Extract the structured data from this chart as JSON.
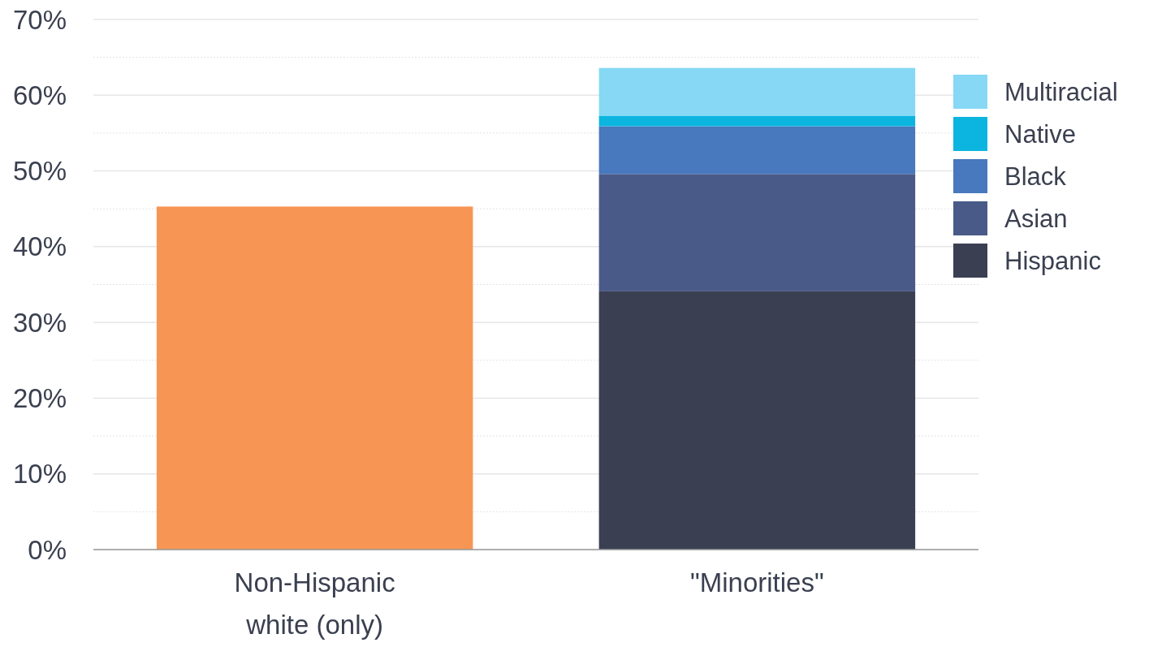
{
  "chart_data": {
    "type": "bar",
    "stacked": true,
    "categories": [
      "Non-Hispanic white (only)",
      "\"Minorities\""
    ],
    "series": [
      {
        "color": "#f79654",
        "values": [
          45.3,
          null
        ]
      },
      {
        "name": "Hispanic",
        "color": "#3a4052",
        "values": [
          null,
          34.1
        ]
      },
      {
        "name": "Asian",
        "color": "#4a5a88",
        "values": [
          null,
          15.5
        ]
      },
      {
        "name": "Black",
        "color": "#4878bd",
        "values": [
          null,
          6.3
        ]
      },
      {
        "name": "Native",
        "color": "#0bb5df",
        "values": [
          null,
          1.4
        ]
      },
      {
        "name": "Multiracial",
        "color": "#86d8f5",
        "values": [
          null,
          6.3
        ]
      }
    ],
    "ylim": [
      0,
      70
    ],
    "yticks": [
      {
        "value": 0,
        "label": "0%"
      },
      {
        "value": 5,
        "label": null
      },
      {
        "value": 10,
        "label": "10%"
      },
      {
        "value": 15,
        "label": null
      },
      {
        "value": 20,
        "label": "20%"
      },
      {
        "value": 25,
        "label": null
      },
      {
        "value": 30,
        "label": "30%"
      },
      {
        "value": 35,
        "label": null
      },
      {
        "value": 40,
        "label": "40%"
      },
      {
        "value": 45,
        "label": null
      },
      {
        "value": 50,
        "label": "50%"
      },
      {
        "value": 55,
        "label": null
      },
      {
        "value": 60,
        "label": "60%"
      },
      {
        "value": 65,
        "label": null
      },
      {
        "value": 70,
        "label": "70%"
      }
    ],
    "grid": "y",
    "legend": "right"
  }
}
